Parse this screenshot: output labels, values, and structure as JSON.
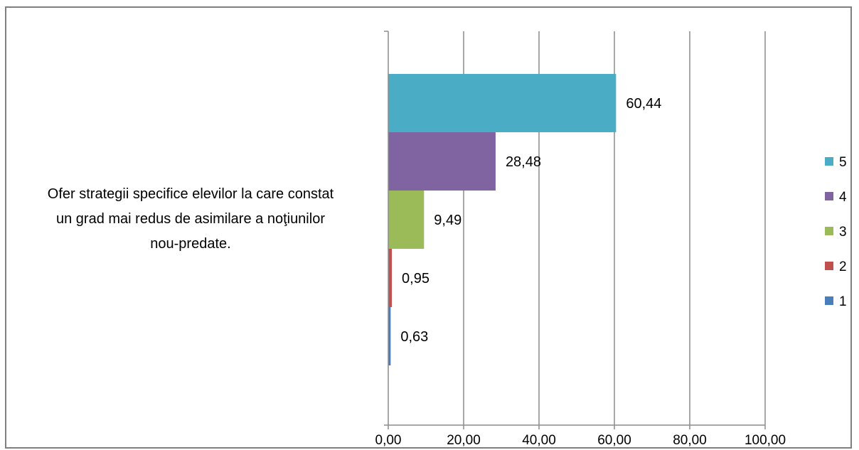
{
  "chart_data": {
    "type": "bar",
    "orientation": "horizontal",
    "category": "Ofer strategii specifice elevilor la care constat un grad mai redus de asimilare a noţiunilor nou-predate.",
    "category_lines": [
      "Ofer strategii specifice elevilor la care constat",
      "un grad mai redus de asimilare a noţiunilor",
      "nou-predate."
    ],
    "series": [
      {
        "name": "1",
        "value": 0.63,
        "label": "0,63",
        "color": "#4a7ebb"
      },
      {
        "name": "2",
        "value": 0.95,
        "label": "0,95",
        "color": "#c0504d"
      },
      {
        "name": "3",
        "value": 9.49,
        "label": "9,49",
        "color": "#9bbb59"
      },
      {
        "name": "4",
        "value": 28.48,
        "label": "28,48",
        "color": "#8064a2"
      },
      {
        "name": "5",
        "value": 60.44,
        "label": "60,44",
        "color": "#4bacc6"
      }
    ],
    "x_ticks": [
      {
        "value": 0,
        "label": "0,00"
      },
      {
        "value": 20,
        "label": "20,00"
      },
      {
        "value": 40,
        "label": "40,00"
      },
      {
        "value": 60,
        "label": "60,00"
      },
      {
        "value": 80,
        "label": "80,00"
      },
      {
        "value": 100,
        "label": "100,00"
      }
    ],
    "xlim": [
      0,
      100
    ],
    "grid": true,
    "legend_position": "right",
    "legend_order": [
      "5",
      "4",
      "3",
      "2",
      "1"
    ],
    "title": "",
    "xlabel": "",
    "ylabel": ""
  }
}
